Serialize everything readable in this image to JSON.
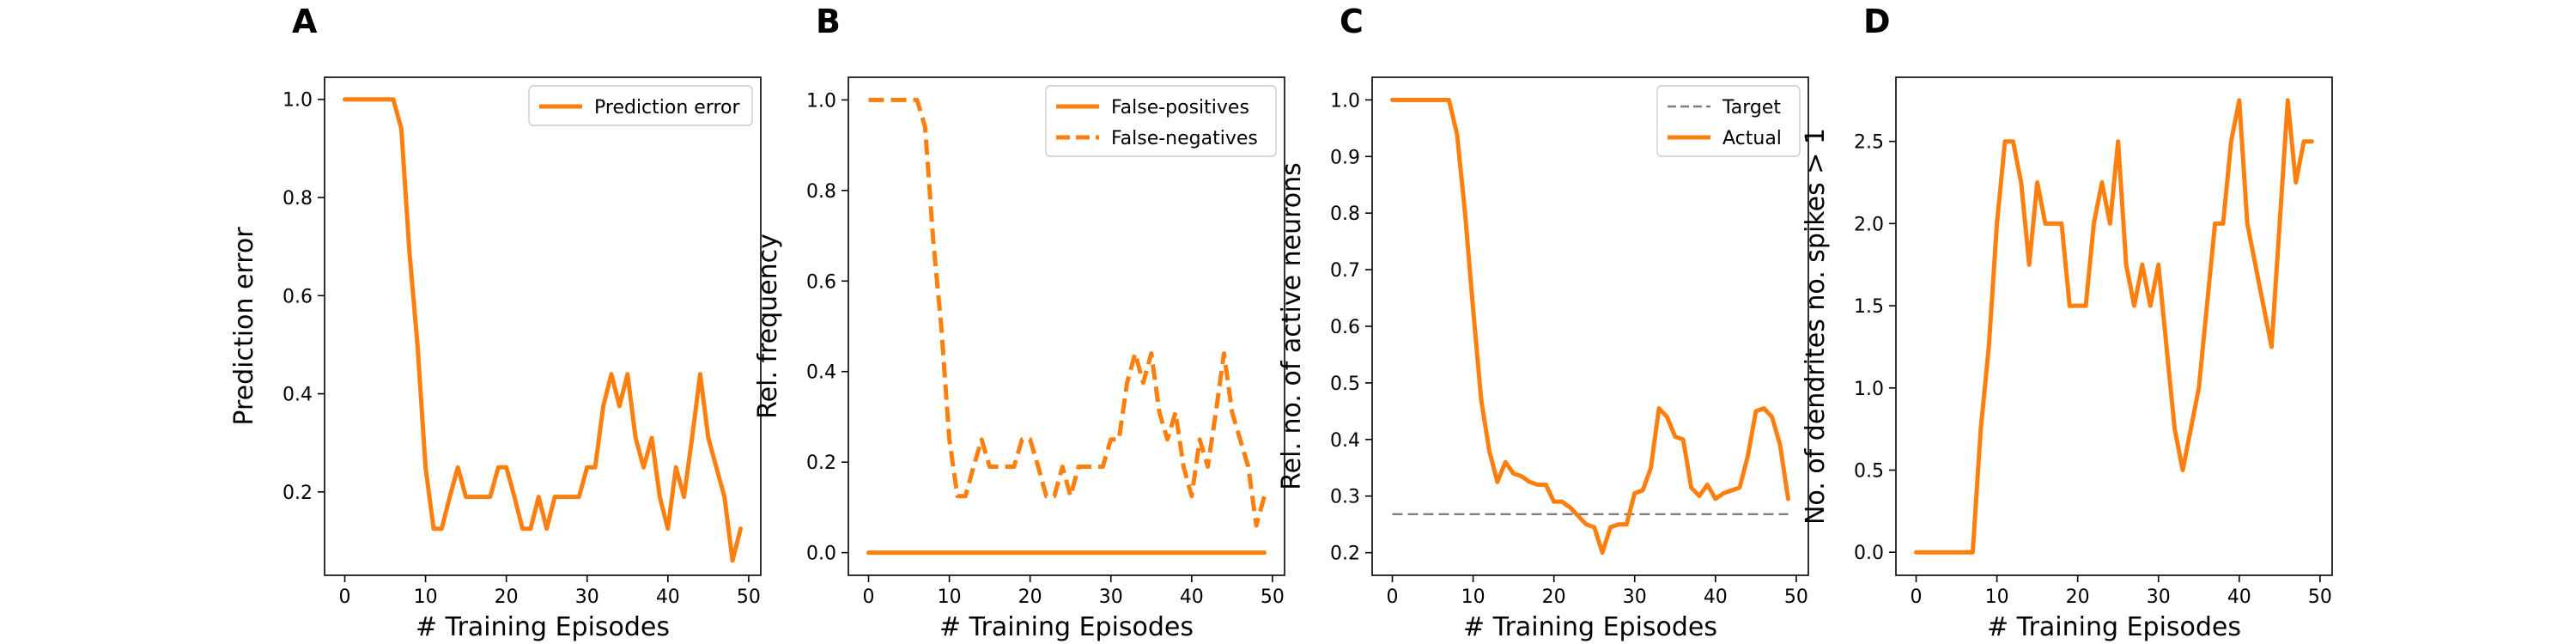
{
  "accent_color": "#ff7f0e",
  "target_color": "#7f7f7f",
  "chart_data": [
    {
      "type": "line",
      "panel_label": "A",
      "xlabel": "# Training Episodes",
      "ylabel": "Prediction error",
      "xlim": [
        -2.5,
        51.5
      ],
      "ylim": [
        0.03,
        1.045
      ],
      "xticks": [
        0,
        10,
        20,
        30,
        40,
        50
      ],
      "xtick_labels": [
        "0",
        "10",
        "20",
        "30",
        "40",
        "50"
      ],
      "yticks": [
        0.2,
        0.4,
        0.6,
        0.8,
        1.0
      ],
      "ytick_labels": [
        "0.2",
        "0.4",
        "0.6",
        "0.8",
        "1.0"
      ],
      "legend_position": "top-right",
      "grid": false,
      "series": [
        {
          "name": "Prediction error",
          "style": "solid",
          "color": "#ff7f0e",
          "x": [
            0,
            1,
            2,
            3,
            4,
            5,
            6,
            7,
            8,
            9,
            10,
            11,
            12,
            13,
            14,
            15,
            16,
            17,
            18,
            19,
            20,
            21,
            22,
            23,
            24,
            25,
            26,
            27,
            28,
            29,
            30,
            31,
            32,
            33,
            34,
            35,
            36,
            37,
            38,
            39,
            40,
            41,
            42,
            43,
            44,
            45,
            46,
            47,
            48,
            49
          ],
          "y": [
            1.0,
            1.0,
            1.0,
            1.0,
            1.0,
            1.0,
            1.0,
            0.94,
            0.69,
            0.5,
            0.25,
            0.125,
            0.125,
            0.19,
            0.25,
            0.19,
            0.19,
            0.19,
            0.19,
            0.25,
            0.25,
            0.19,
            0.125,
            0.125,
            0.19,
            0.125,
            0.19,
            0.19,
            0.19,
            0.19,
            0.25,
            0.25,
            0.375,
            0.44,
            0.375,
            0.44,
            0.31,
            0.25,
            0.31,
            0.19,
            0.125,
            0.25,
            0.19,
            0.31,
            0.44,
            0.31,
            0.25,
            0.19,
            0.06,
            0.125
          ]
        }
      ]
    },
    {
      "type": "line",
      "panel_label": "B",
      "xlabel": "# Training Episodes",
      "ylabel": "Rel. frequency",
      "xlim": [
        -2.5,
        51.5
      ],
      "ylim": [
        -0.05,
        1.05
      ],
      "xticks": [
        0,
        10,
        20,
        30,
        40,
        50
      ],
      "xtick_labels": [
        "0",
        "10",
        "20",
        "30",
        "40",
        "50"
      ],
      "yticks": [
        0.0,
        0.2,
        0.4,
        0.6,
        0.8,
        1.0
      ],
      "ytick_labels": [
        "0.0",
        "0.2",
        "0.4",
        "0.6",
        "0.8",
        "1.0"
      ],
      "legend_position": "top-right",
      "grid": false,
      "series": [
        {
          "name": "False-positives",
          "style": "solid",
          "color": "#ff7f0e",
          "x": [
            0,
            49
          ],
          "y": [
            0.0,
            0.0
          ]
        },
        {
          "name": "False-negatives",
          "style": "dashed",
          "color": "#ff7f0e",
          "x": [
            0,
            1,
            2,
            3,
            4,
            5,
            6,
            7,
            8,
            9,
            10,
            11,
            12,
            13,
            14,
            15,
            16,
            17,
            18,
            19,
            20,
            21,
            22,
            23,
            24,
            25,
            26,
            27,
            28,
            29,
            30,
            31,
            32,
            33,
            34,
            35,
            36,
            37,
            38,
            39,
            40,
            41,
            42,
            43,
            44,
            45,
            46,
            47,
            48,
            49
          ],
          "y": [
            1.0,
            1.0,
            1.0,
            1.0,
            1.0,
            1.0,
            1.0,
            0.94,
            0.69,
            0.5,
            0.25,
            0.125,
            0.125,
            0.19,
            0.25,
            0.19,
            0.19,
            0.19,
            0.19,
            0.25,
            0.25,
            0.19,
            0.125,
            0.125,
            0.19,
            0.125,
            0.19,
            0.19,
            0.19,
            0.19,
            0.25,
            0.25,
            0.375,
            0.44,
            0.375,
            0.44,
            0.31,
            0.25,
            0.31,
            0.19,
            0.125,
            0.25,
            0.19,
            0.31,
            0.44,
            0.31,
            0.25,
            0.19,
            0.06,
            0.125
          ]
        }
      ]
    },
    {
      "type": "line",
      "panel_label": "C",
      "xlabel": "# Training Episodes",
      "ylabel": "Rel. no. of active neurons",
      "xlim": [
        -2.5,
        51.5
      ],
      "ylim": [
        0.16,
        1.04
      ],
      "xticks": [
        0,
        10,
        20,
        30,
        40,
        50
      ],
      "xtick_labels": [
        "0",
        "10",
        "20",
        "30",
        "40",
        "50"
      ],
      "yticks": [
        0.2,
        0.3,
        0.4,
        0.5,
        0.6,
        0.7,
        0.8,
        0.9,
        1.0
      ],
      "ytick_labels": [
        "0.2",
        "0.3",
        "0.4",
        "0.5",
        "0.6",
        "0.7",
        "0.8",
        "0.9",
        "1.0"
      ],
      "legend_position": "top-right",
      "grid": false,
      "series": [
        {
          "name": "Target",
          "style": "dashed",
          "color": "#7f7f7f",
          "x": [
            0,
            49
          ],
          "y": [
            0.268,
            0.268
          ]
        },
        {
          "name": "Actual",
          "style": "solid",
          "color": "#ff7f0e",
          "x": [
            0,
            1,
            2,
            3,
            4,
            5,
            6,
            7,
            8,
            9,
            10,
            11,
            12,
            13,
            14,
            15,
            16,
            17,
            18,
            19,
            20,
            21,
            22,
            23,
            24,
            25,
            26,
            27,
            28,
            29,
            30,
            31,
            32,
            33,
            34,
            35,
            36,
            37,
            38,
            39,
            40,
            41,
            42,
            43,
            44,
            45,
            46,
            47,
            48,
            49
          ],
          "y": [
            1.0,
            1.0,
            1.0,
            1.0,
            1.0,
            1.0,
            1.0,
            1.0,
            0.94,
            0.8,
            0.63,
            0.47,
            0.38,
            0.325,
            0.36,
            0.34,
            0.335,
            0.325,
            0.32,
            0.32,
            0.29,
            0.29,
            0.28,
            0.265,
            0.25,
            0.245,
            0.2,
            0.245,
            0.25,
            0.25,
            0.305,
            0.31,
            0.35,
            0.455,
            0.44,
            0.405,
            0.4,
            0.315,
            0.3,
            0.32,
            0.295,
            0.305,
            0.31,
            0.315,
            0.37,
            0.45,
            0.455,
            0.44,
            0.39,
            0.295
          ]
        }
      ]
    },
    {
      "type": "line",
      "panel_label": "D",
      "xlabel": "# Training Episodes",
      "ylabel": "No. of dendrites no. spikes > 1",
      "xlim": [
        -2.5,
        51.5
      ],
      "ylim": [
        -0.14,
        2.89
      ],
      "xticks": [
        0,
        10,
        20,
        30,
        40,
        50
      ],
      "xtick_labels": [
        "0",
        "10",
        "20",
        "30",
        "40",
        "50"
      ],
      "yticks": [
        0.0,
        0.5,
        1.0,
        1.5,
        2.0,
        2.5
      ],
      "ytick_labels": [
        "0.0",
        "0.5",
        "1.0",
        "1.5",
        "2.0",
        "2.5"
      ],
      "legend_position": "",
      "grid": false,
      "series": [
        {
          "style": "solid",
          "color": "#ff7f0e",
          "x": [
            0,
            1,
            2,
            3,
            4,
            5,
            6,
            7,
            8,
            9,
            10,
            11,
            12,
            13,
            14,
            15,
            16,
            17,
            18,
            19,
            20,
            21,
            22,
            23,
            24,
            25,
            26,
            27,
            28,
            29,
            30,
            31,
            32,
            33,
            34,
            35,
            36,
            37,
            38,
            39,
            40,
            41,
            42,
            43,
            44,
            45,
            46,
            47,
            48,
            49
          ],
          "y": [
            0,
            0,
            0,
            0,
            0,
            0,
            0,
            0,
            0.75,
            1.25,
            2.0,
            2.5,
            2.5,
            2.25,
            1.75,
            2.25,
            2.0,
            2.0,
            2.0,
            1.5,
            1.5,
            1.5,
            2.0,
            2.25,
            2.0,
            2.5,
            1.75,
            1.5,
            1.75,
            1.5,
            1.75,
            1.25,
            0.75,
            0.5,
            0.75,
            1.0,
            1.5,
            2.0,
            2.0,
            2.5,
            2.75,
            2.0,
            1.75,
            1.5,
            1.25,
            2.0,
            2.75,
            2.25,
            2.5,
            2.5
          ]
        }
      ]
    }
  ]
}
